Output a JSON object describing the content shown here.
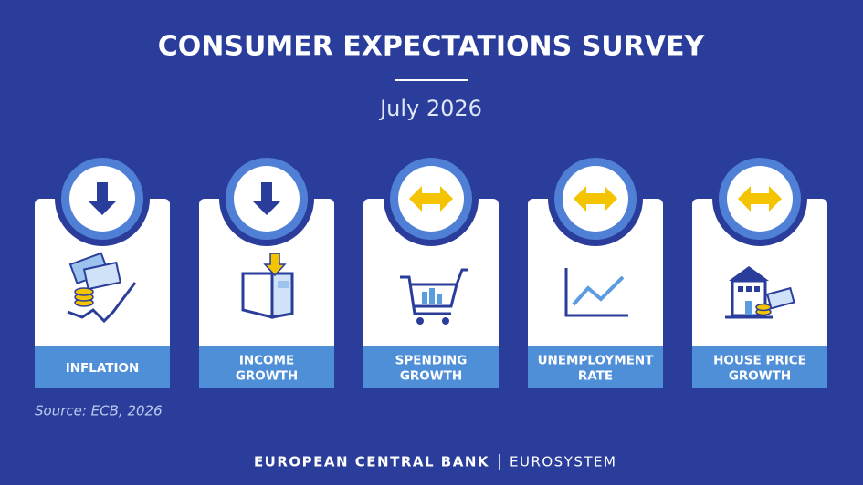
{
  "header": {
    "title": "CONSUMER EXPECTATIONS SURVEY",
    "subtitle": "July 2026"
  },
  "cards": [
    {
      "label_lines": [
        "INFLATION"
      ],
      "indicator": "down"
    },
    {
      "label_lines": [
        "INCOME",
        "GROWTH"
      ],
      "indicator": "down"
    },
    {
      "label_lines": [
        "SPENDING",
        "GROWTH"
      ],
      "indicator": "sideways"
    },
    {
      "label_lines": [
        "UNEMPLOYMENT",
        "RATE"
      ],
      "indicator": "sideways"
    },
    {
      "label_lines": [
        "HOUSE PRICE",
        "GROWTH"
      ],
      "indicator": "sideways"
    }
  ],
  "source": "Source: ECB, 2026",
  "footer": {
    "left": "EUROPEAN CENTRAL BANK",
    "right": "EUROSYSTEM"
  }
}
